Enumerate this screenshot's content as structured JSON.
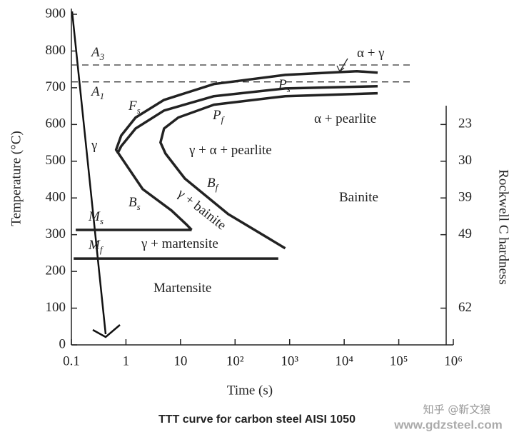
{
  "chart_data": {
    "type": "line",
    "caption": "TTT curve for carbon steel AISI 1050",
    "x_label": "Time (s)",
    "y_label": "Temperature (°C)",
    "y2_label": "Rockwell C hardness",
    "xscale": "log",
    "xlim": [
      0.1,
      1000000
    ],
    "ylim": [
      0,
      900
    ],
    "xticks": [
      0.1,
      1,
      10,
      {
        "value": 100,
        "label": "10²"
      },
      {
        "value": 1000,
        "label": "10³"
      },
      {
        "value": 10000,
        "label": "10⁴"
      },
      {
        "value": 100000,
        "label": "10⁵"
      },
      {
        "value": 1000000,
        "label": "10⁶"
      }
    ],
    "yticks": [
      0,
      100,
      200,
      300,
      400,
      500,
      600,
      700,
      800,
      900
    ],
    "hardness_ticks": [
      {
        "value": 600,
        "label": "23"
      },
      {
        "value": 500,
        "label": "30"
      },
      {
        "value": 400,
        "label": "39"
      },
      {
        "value": 300,
        "label": "49"
      },
      {
        "value": 100,
        "label": "62"
      }
    ],
    "series": [
      {
        "color": "#333333",
        "dashed": true,
        "x": [
          0.1,
          180000
        ],
        "values": [
          762,
          762
        ]
      },
      {
        "color": "#333333",
        "dashed": true,
        "x": [
          0.1,
          180000
        ],
        "values": [
          716,
          716
        ]
      },
      {
        "color": "#222222",
        "dashed": false,
        "x": [
          41000,
          17000,
          830,
          41,
          5,
          1.5,
          0.82,
          0.66,
          2.03,
          6.8,
          13,
          16
        ],
        "values": [
          741,
          745,
          735,
          710,
          667,
          619,
          570,
          531,
          424,
          366,
          327,
          313
        ]
      },
      {
        "color": "#222222",
        "dashed": false,
        "x": [
          41000,
          830,
          41,
          5,
          1.5,
          0.82,
          0.7
        ],
        "values": [
          704,
          698,
          677,
          638,
          589,
          541,
          521
        ]
      },
      {
        "color": "#222222",
        "dashed": false,
        "x": [
          41000,
          830,
          41,
          9.1,
          5,
          4.3,
          5.3,
          12,
          75,
          830
        ],
        "values": [
          685,
          677,
          654,
          619,
          589,
          551,
          521,
          453,
          356,
          263
        ]
      },
      {
        "color": "#222222",
        "dashed": false,
        "x": [
          0.12,
          16
        ],
        "values": [
          313,
          313
        ]
      },
      {
        "color": "#222222",
        "dashed": false,
        "x": [
          0.11,
          620
        ],
        "values": [
          235,
          235
        ]
      }
    ],
    "annotations": [
      {
        "text": "A",
        "sub": "3"
      },
      {
        "text": "A",
        "sub": "1"
      },
      {
        "text": "α + γ"
      },
      {
        "text": "P",
        "sub": "s"
      },
      {
        "text": "α + pearlite"
      },
      {
        "text": "F",
        "sub": "s"
      },
      {
        "text": "P",
        "sub": "f"
      },
      {
        "text": "γ"
      },
      {
        "text": "γ + α + pearlite"
      },
      {
        "text": "γ + bainite"
      },
      {
        "text": "B",
        "sub": "f"
      },
      {
        "text": "B",
        "sub": "s"
      },
      {
        "text": "M",
        "sub": "s"
      },
      {
        "text": "M",
        "sub": "f"
      },
      {
        "text": "Bainite"
      },
      {
        "text": "γ + martensite"
      },
      {
        "text": "Martensite"
      }
    ],
    "watermarks": [
      "知乎 @靳文狼",
      "www.gdzsteel.com"
    ]
  }
}
